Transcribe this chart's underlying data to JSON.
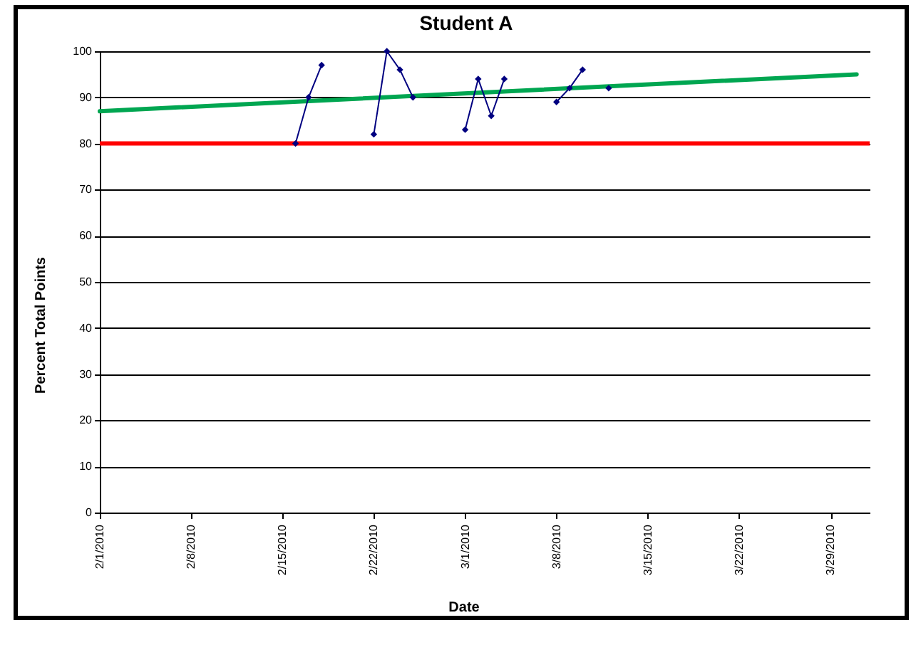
{
  "chart_data": {
    "type": "line",
    "title": "Student A",
    "xlabel": "Date",
    "ylabel": "Percent Total Points",
    "xlim": [
      "2010-02-01",
      "2010-04-01"
    ],
    "xticks": [
      {
        "value": "2010-02-01",
        "label": "2/1/2010"
      },
      {
        "value": "2010-02-08",
        "label": "2/8/2010"
      },
      {
        "value": "2010-02-15",
        "label": "2/15/2010"
      },
      {
        "value": "2010-02-22",
        "label": "2/22/2010"
      },
      {
        "value": "2010-03-01",
        "label": "3/1/2010"
      },
      {
        "value": "2010-03-08",
        "label": "3/8/2010"
      },
      {
        "value": "2010-03-15",
        "label": "3/15/2010"
      },
      {
        "value": "2010-03-22",
        "label": "3/22/2010"
      },
      {
        "value": "2010-03-29",
        "label": "3/29/2010"
      }
    ],
    "ylim": [
      0,
      100
    ],
    "yticks": [
      0,
      10,
      20,
      30,
      40,
      50,
      60,
      70,
      80,
      90,
      100
    ],
    "grid": "y",
    "series": [
      {
        "color": "#000080",
        "marker": "diamond",
        "x": [
          "2010-02-16",
          "2010-02-17",
          "2010-02-18",
          "2010-02-19",
          "2010-02-22",
          "2010-02-23",
          "2010-02-24",
          "2010-02-25",
          "2010-02-26",
          "2010-03-01",
          "2010-03-02",
          "2010-03-03",
          "2010-03-04",
          "2010-03-05",
          "2010-03-08",
          "2010-03-09",
          "2010-03-10",
          "2010-03-11",
          "2010-03-12"
        ],
        "values": [
          80,
          90,
          97,
          null,
          82,
          100,
          96,
          90,
          null,
          83,
          94,
          86,
          94,
          null,
          89,
          92,
          96,
          null,
          92
        ]
      },
      {
        "color": "#00a651",
        "marker": "none",
        "x": [
          "2010-02-01",
          "2010-03-31"
        ],
        "values": [
          87,
          95
        ]
      }
    ],
    "ref_lines": [
      {
        "axis": "y",
        "value": 80,
        "color": "#ff0000"
      }
    ]
  }
}
